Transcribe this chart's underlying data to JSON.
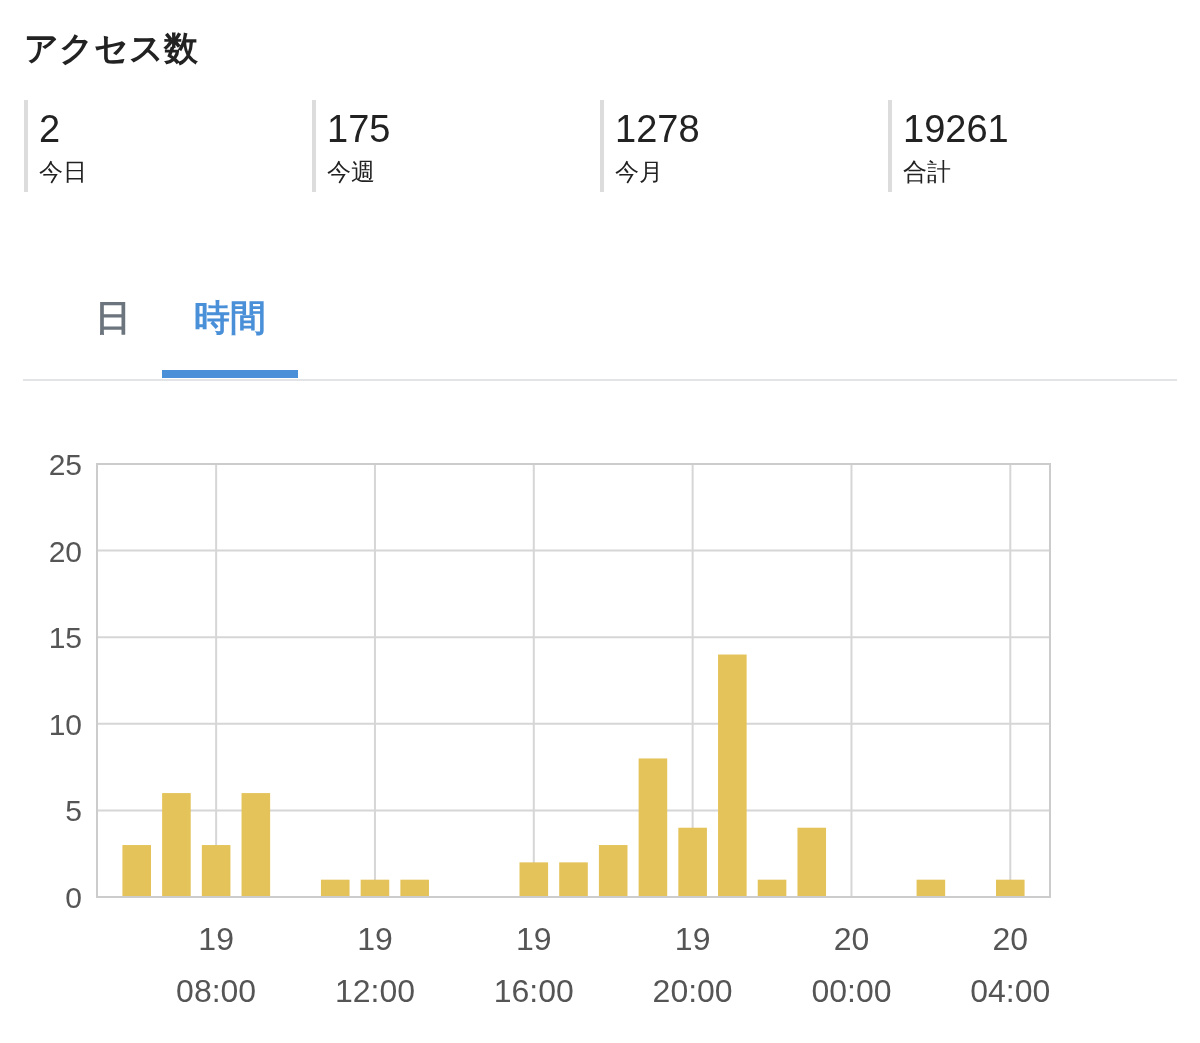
{
  "chart_data": [
    {
      "type": "other",
      "title": "アクセス数",
      "categories": [
        "今日",
        "今週",
        "今月",
        "合計"
      ],
      "values": [
        2,
        175,
        1278,
        19261
      ],
      "data_labels": true
    },
    {
      "type": "bar",
      "annotations": [
        "日",
        "時間"
      ],
      "categories": [
        null,
        null,
        "19\n08:00",
        null,
        null,
        null,
        "19\n12:00",
        null,
        null,
        null,
        "19\n16:00",
        null,
        null,
        null,
        "19\n20:00",
        null,
        null,
        null,
        "20\n00:00",
        null,
        null,
        null,
        "20\n04:00"
      ],
      "values": [
        3,
        6,
        3,
        6,
        null,
        1,
        1,
        1,
        null,
        null,
        2,
        2,
        3,
        8,
        4,
        14,
        1,
        4,
        null,
        null,
        1,
        null,
        1
      ],
      "color": "#e4c35a",
      "ylim": [
        0,
        25
      ],
      "yticks": [
        0,
        5,
        10,
        15,
        20,
        25
      ],
      "grid": true
    }
  ]
}
